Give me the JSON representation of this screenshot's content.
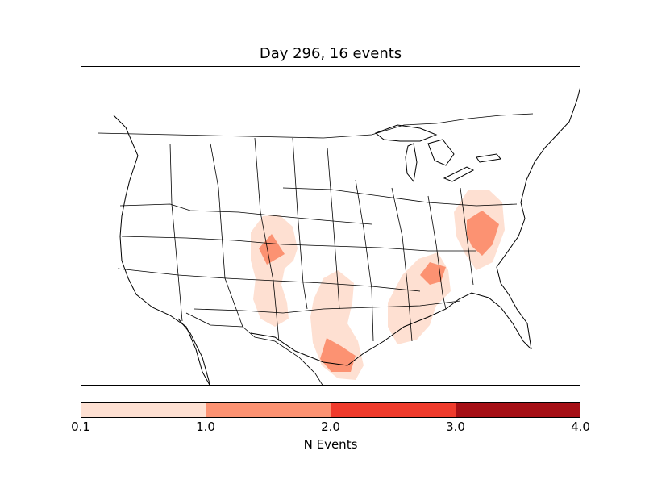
{
  "title": "Day 296, 16 events",
  "colorbar": {
    "label": "N Events",
    "ticks": [
      "0.1",
      "1.0",
      "2.0",
      "3.0",
      "4.0"
    ],
    "colors": [
      "#fee0d2",
      "#fc9272",
      "#ef3b2c",
      "#a50f15"
    ]
  },
  "map": {
    "region": "contiguous-united-states",
    "colormap": "reds",
    "fill_light": "#fee0d2",
    "fill_mid": "#fc9272"
  }
}
